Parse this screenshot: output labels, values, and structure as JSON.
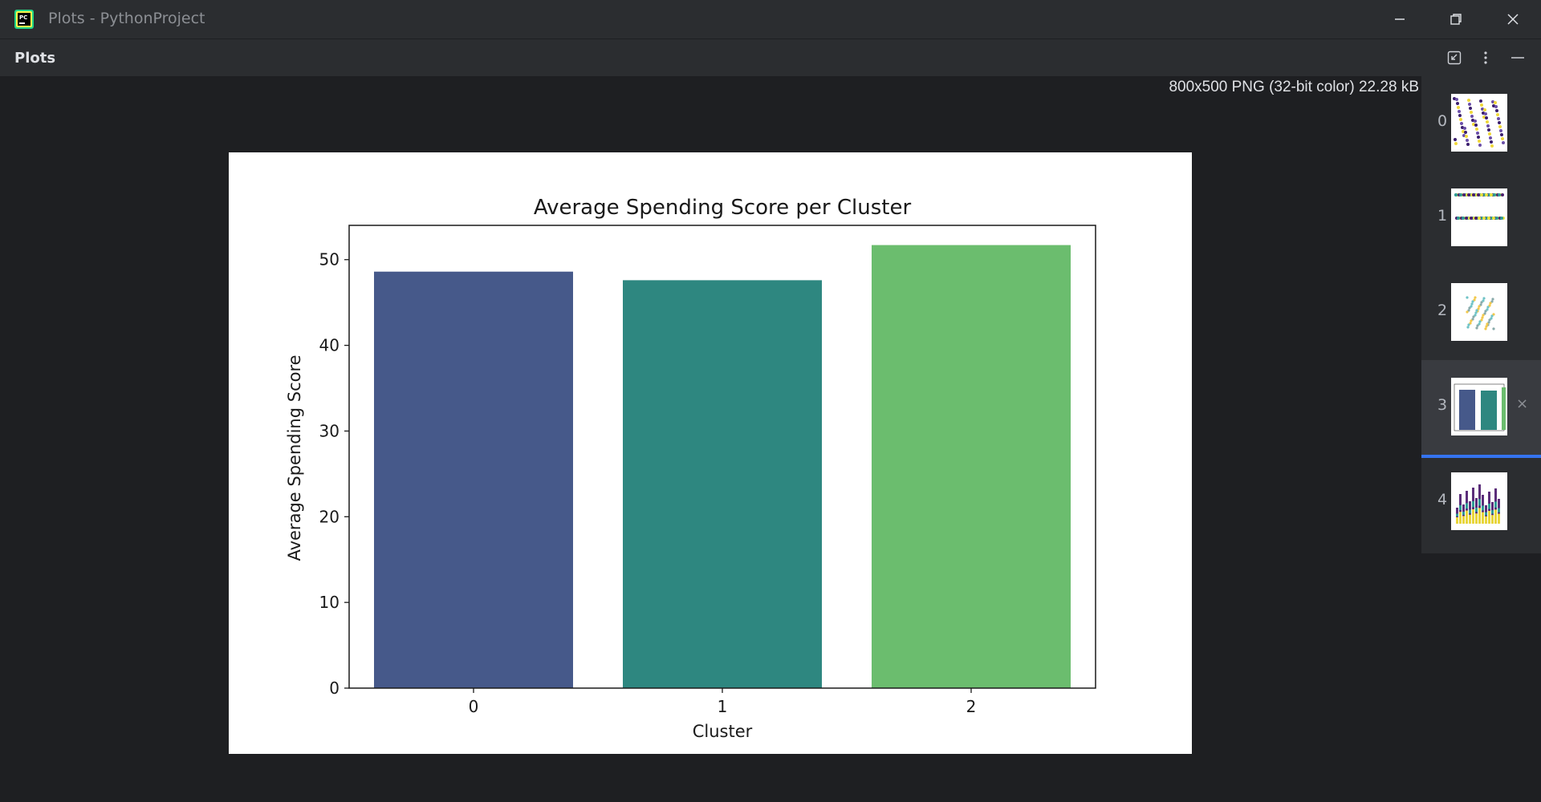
{
  "window": {
    "title": "Plots - PythonProject"
  },
  "panel": {
    "title": "Plots"
  },
  "image_info": "800x500 PNG (32-bit color) 22.28 kB",
  "thumbnails": [
    {
      "index": "0"
    },
    {
      "index": "1"
    },
    {
      "index": "2"
    },
    {
      "index": "3",
      "selected": true,
      "close": "×"
    },
    {
      "index": "4"
    }
  ],
  "colors": {
    "accent": "#3574f0",
    "bar0": "#46598a",
    "bar1": "#2e8780",
    "bar2": "#6bbd6e"
  },
  "chart_data": {
    "type": "bar",
    "title": "Average Spending Score per Cluster",
    "xlabel": "Cluster",
    "ylabel": "Average Spending Score",
    "categories": [
      "0",
      "1",
      "2"
    ],
    "values": [
      48.6,
      47.6,
      51.7
    ],
    "ylim": [
      0,
      54
    ],
    "yticks": [
      0,
      10,
      20,
      30,
      40,
      50
    ],
    "grid": false
  }
}
